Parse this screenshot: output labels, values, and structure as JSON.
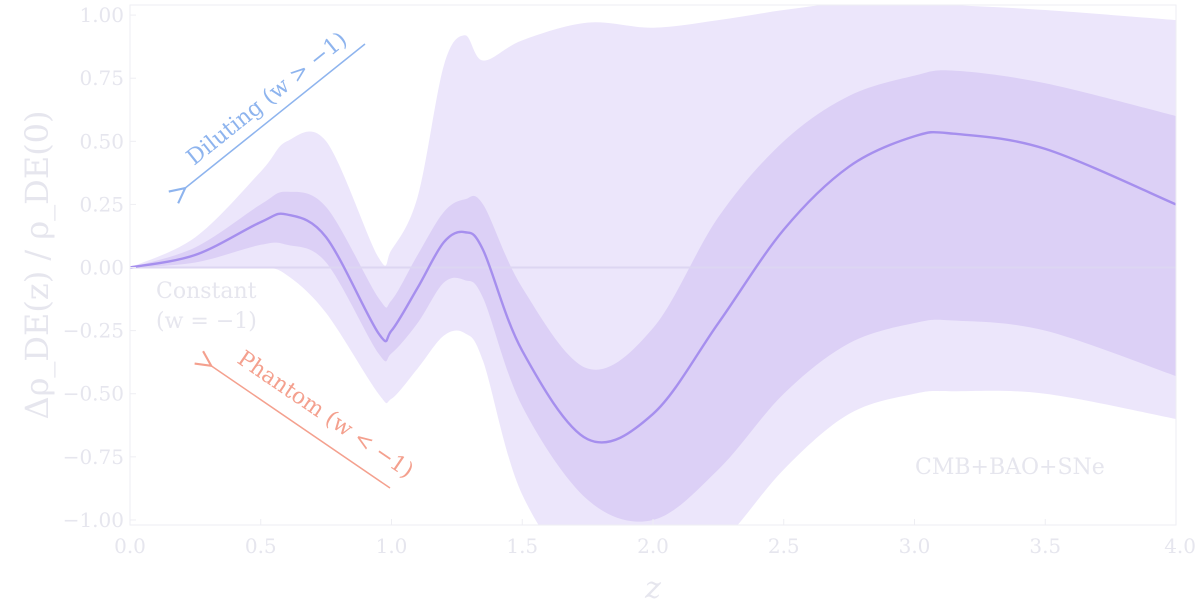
{
  "chart_data": {
    "type": "area",
    "xlabel": "z",
    "ylabel": "Δρ_DE(z) / ρ_DE(0)",
    "xlim": [
      0.0,
      4.0
    ],
    "ylim": [
      -1.02,
      1.04
    ],
    "xticks": [
      "0.0",
      "0.5",
      "1.0",
      "1.5",
      "2.0",
      "2.5",
      "3.0",
      "3.5",
      "4.0"
    ],
    "yticks": [
      "−1.00",
      "−0.75",
      "−0.50",
      "−0.25",
      "0.00",
      "0.25",
      "0.50",
      "0.75",
      "1.00"
    ],
    "grid": false,
    "x": [
      0.0,
      0.25,
      0.5,
      0.6,
      0.75,
      0.95,
      1.0,
      1.1,
      1.2,
      1.28,
      1.35,
      1.5,
      1.75,
      2.0,
      2.25,
      2.5,
      2.75,
      3.0,
      3.15,
      3.5,
      4.0
    ],
    "median": [
      0.0,
      0.05,
      0.18,
      0.21,
      0.12,
      -0.26,
      -0.25,
      -0.08,
      0.1,
      0.14,
      0.07,
      -0.33,
      -0.68,
      -0.58,
      -0.22,
      0.15,
      0.4,
      0.52,
      0.53,
      0.47,
      0.25
    ],
    "sigma1_lower": [
      0.0,
      0.02,
      0.09,
      0.09,
      0.02,
      -0.34,
      -0.34,
      -0.22,
      -0.06,
      -0.05,
      -0.12,
      -0.55,
      -0.92,
      -1.0,
      -0.8,
      -0.5,
      -0.3,
      -0.22,
      -0.21,
      -0.25,
      -0.43
    ],
    "sigma1_upper": [
      0.0,
      0.08,
      0.25,
      0.3,
      0.24,
      -0.12,
      -0.13,
      0.05,
      0.22,
      0.27,
      0.25,
      -0.08,
      -0.4,
      -0.24,
      0.2,
      0.5,
      0.68,
      0.76,
      0.78,
      0.73,
      0.6
    ],
    "sigma2_lower": [
      0.0,
      0.0,
      0.0,
      -0.03,
      -0.18,
      -0.5,
      -0.52,
      -0.4,
      -0.27,
      -0.26,
      -0.37,
      -0.9,
      -1.25,
      -1.25,
      -1.1,
      -0.8,
      -0.58,
      -0.5,
      -0.49,
      -0.5,
      -0.6
    ],
    "sigma2_upper": [
      0.0,
      0.12,
      0.38,
      0.5,
      0.5,
      0.04,
      0.07,
      0.28,
      0.8,
      0.92,
      0.82,
      0.9,
      0.97,
      0.95,
      0.98,
      1.02,
      1.05,
      1.05,
      1.04,
      1.02,
      0.98
    ],
    "reference_line": 0.0,
    "annotations": {
      "diluting": "Diluting (w > −1)",
      "constant_line1": "Constant",
      "constant_line2": "(w = −1)",
      "phantom": "Phantom (w < −1)",
      "dataset": "CMB+BAO+SNe"
    },
    "colors": {
      "median": "#a68fee",
      "band_inner": "#dcd0f6",
      "band_outer": "#ece6fb",
      "reference": "#ddd6f2",
      "diluting": "#8eb4ee",
      "phantom": "#f4a08e",
      "text_light": "#e6e6ee"
    }
  }
}
